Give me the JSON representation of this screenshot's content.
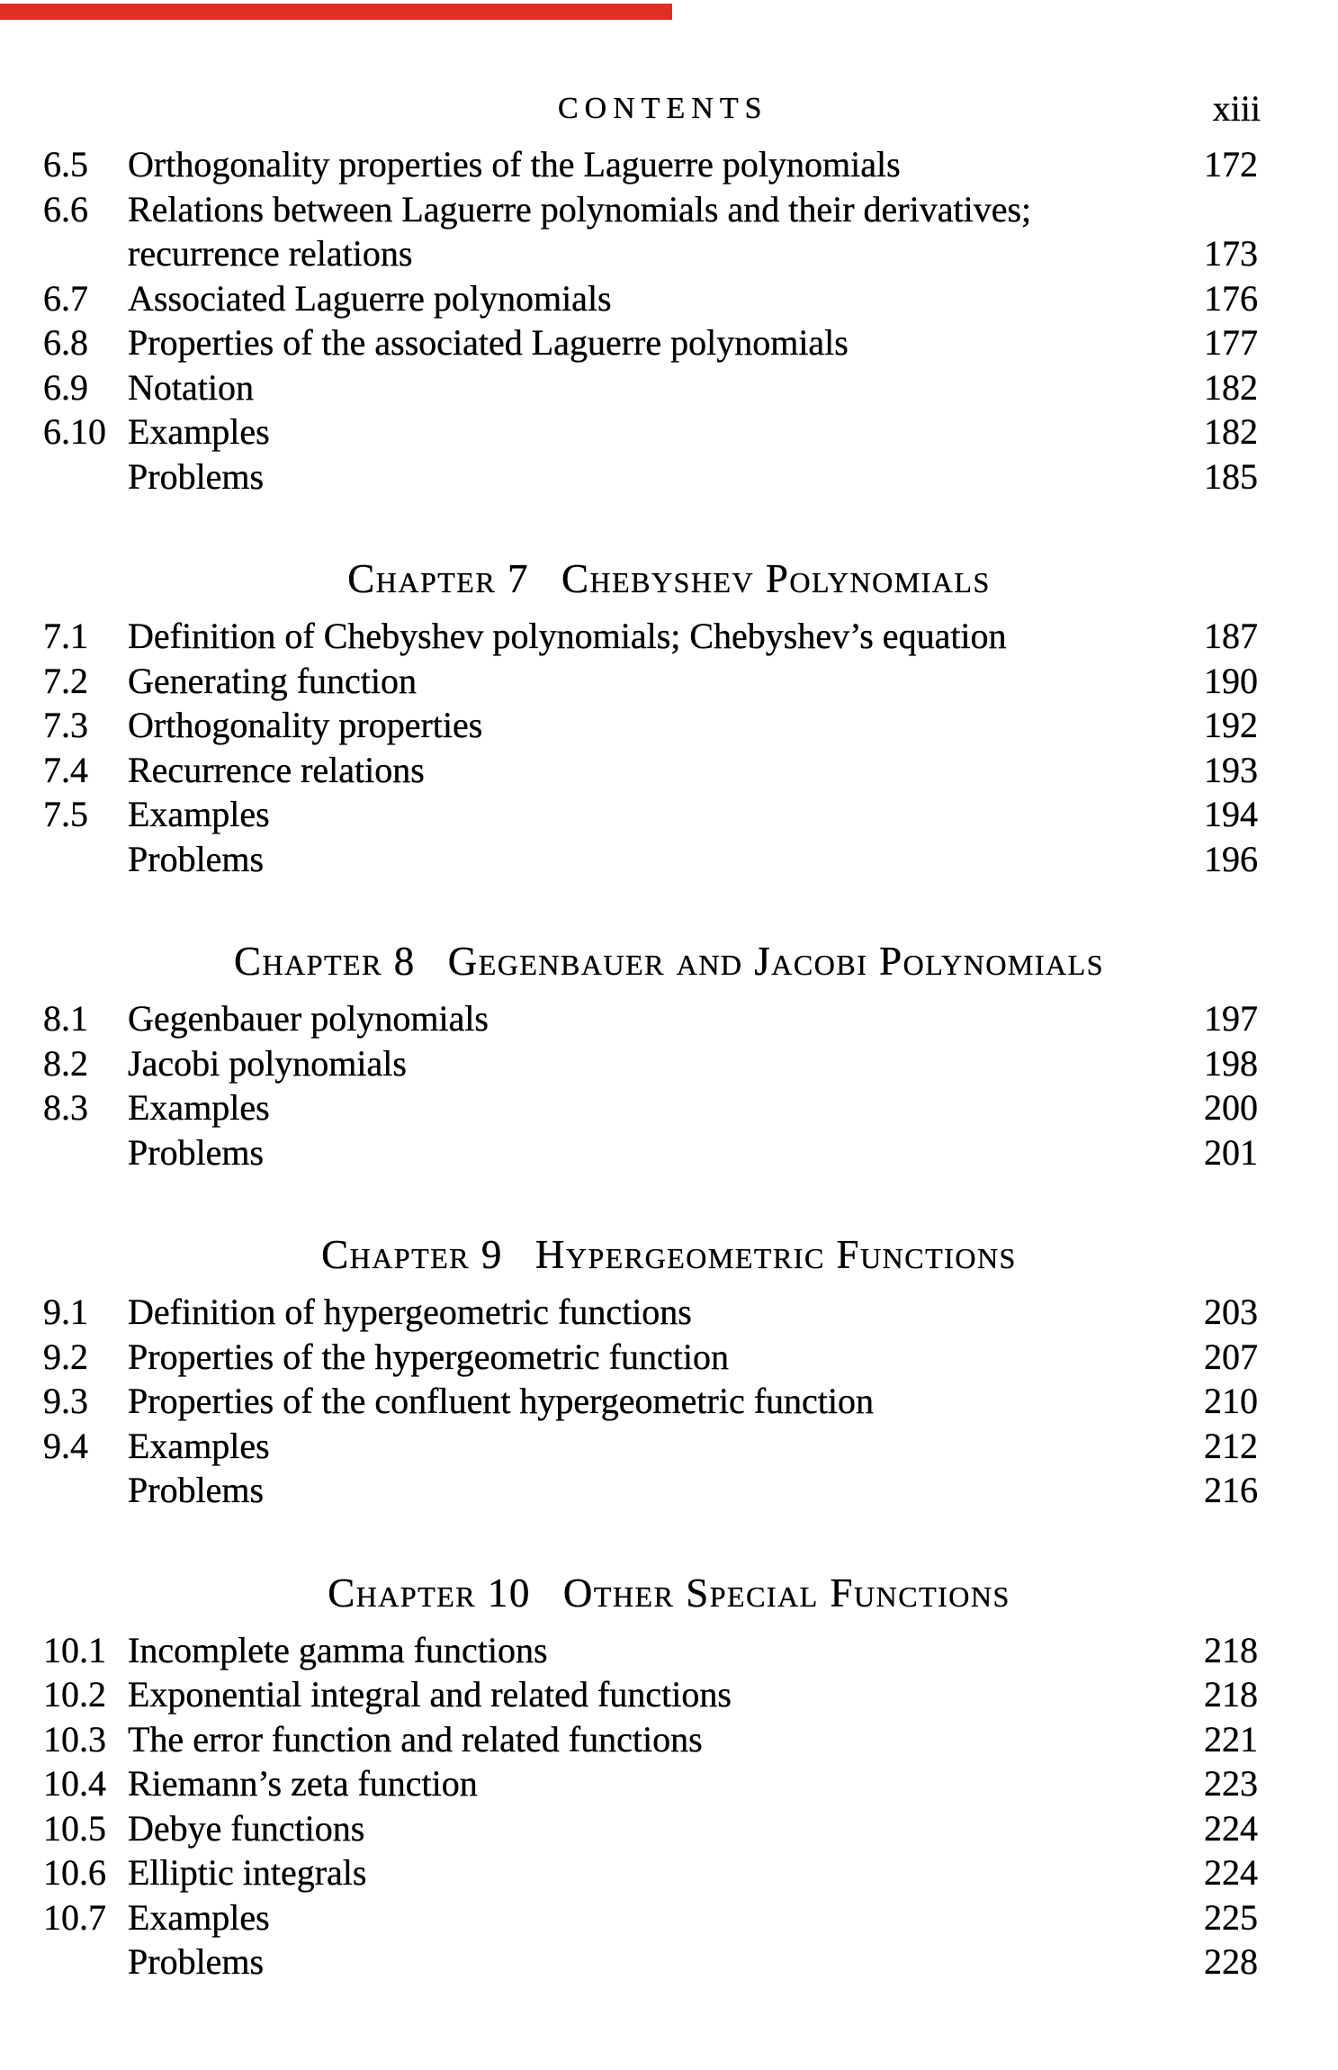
{
  "header": {
    "title": "CONTENTS",
    "page_number": "xiii"
  },
  "scan_artifact": {
    "color": "#dd2f23"
  },
  "sections": [
    {
      "rows": [
        {
          "num": "6.5",
          "text": "Orthogonality properties of the Laguerre polynomials",
          "page": "172"
        },
        {
          "num": "6.6",
          "text": "Relations between Laguerre polynomials and their derivatives;",
          "page": ""
        },
        {
          "num": "",
          "text": "recurrence relations",
          "page": "173"
        },
        {
          "num": "6.7",
          "text": "Associated Laguerre polynomials",
          "page": "176"
        },
        {
          "num": "6.8",
          "text": "Properties of the associated Laguerre polynomials",
          "page": "177"
        },
        {
          "num": "6.9",
          "text": "Notation",
          "page": "182"
        },
        {
          "num": "6.10",
          "text": "Examples",
          "page": "182"
        },
        {
          "num": "",
          "text": "Problems",
          "page": "185"
        }
      ]
    },
    {
      "heading": {
        "label": "Chapter 7",
        "title": "Chebyshev Polynomials"
      },
      "rows": [
        {
          "num": "7.1",
          "text": "Definition of Chebyshev polynomials; Chebyshev’s equation",
          "page": "187"
        },
        {
          "num": "7.2",
          "text": "Generating function",
          "page": "190"
        },
        {
          "num": "7.3",
          "text": "Orthogonality properties",
          "page": "192"
        },
        {
          "num": "7.4",
          "text": "Recurrence relations",
          "page": "193"
        },
        {
          "num": "7.5",
          "text": "Examples",
          "page": "194"
        },
        {
          "num": "",
          "text": "Problems",
          "page": "196"
        }
      ]
    },
    {
      "heading": {
        "label": "Chapter 8",
        "title": "Gegenbauer and Jacobi Polynomials"
      },
      "rows": [
        {
          "num": "8.1",
          "text": "Gegenbauer polynomials",
          "page": "197"
        },
        {
          "num": "8.2",
          "text": "Jacobi polynomials",
          "page": "198"
        },
        {
          "num": "8.3",
          "text": "Examples",
          "page": "200"
        },
        {
          "num": "",
          "text": "Problems",
          "page": "201"
        }
      ]
    },
    {
      "heading": {
        "label": "Chapter 9",
        "title": "Hypergeometric Functions"
      },
      "rows": [
        {
          "num": "9.1",
          "text": "Definition of hypergeometric functions",
          "page": "203"
        },
        {
          "num": "9.2",
          "text": "Properties of the hypergeometric function",
          "page": "207"
        },
        {
          "num": "9.3",
          "text": "Properties of the confluent hypergeometric function",
          "page": "210"
        },
        {
          "num": "9.4",
          "text": "Examples",
          "page": "212"
        },
        {
          "num": "",
          "text": "Problems",
          "page": "216"
        }
      ]
    },
    {
      "heading": {
        "label": "Chapter 10",
        "title": "Other Special Functions"
      },
      "rows": [
        {
          "num": "10.1",
          "text": "Incomplete gamma functions",
          "page": "218"
        },
        {
          "num": "10.2",
          "text": "Exponential integral and related functions",
          "page": "218"
        },
        {
          "num": "10.3",
          "text": "The error function and related functions",
          "page": "221"
        },
        {
          "num": "10.4",
          "text": "Riemann’s zeta function",
          "page": "223"
        },
        {
          "num": "10.5",
          "text": "Debye functions",
          "page": "224"
        },
        {
          "num": "10.6",
          "text": "Elliptic integrals",
          "page": "224"
        },
        {
          "num": "10.7",
          "text": "Examples",
          "page": "225"
        },
        {
          "num": "",
          "text": "Problems",
          "page": "228"
        }
      ]
    }
  ]
}
